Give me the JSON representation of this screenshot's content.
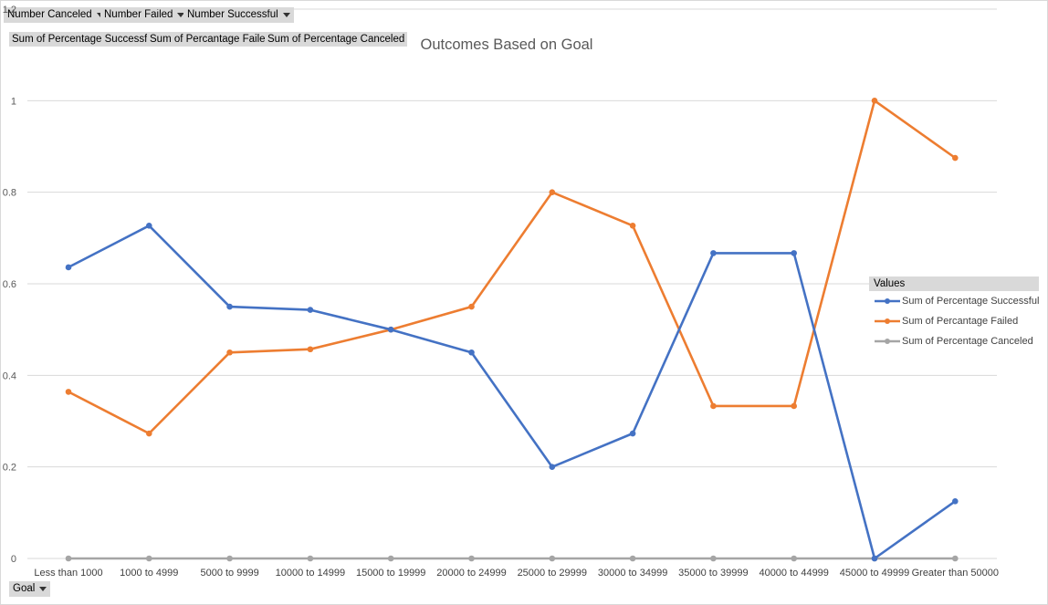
{
  "filters": [
    {
      "label": "Number Canceled"
    },
    {
      "label": "Number Failed"
    },
    {
      "label": "Number Successful"
    }
  ],
  "value_fields": [
    "Sum of Percentage Successful",
    "Sum of Percantage Failed",
    "Sum of Percentage Canceled"
  ],
  "axis_field": {
    "label": "Goal"
  },
  "legend": {
    "title": "Values"
  },
  "colors": {
    "successful": "#4472c4",
    "failed": "#ed7d31",
    "canceled": "#a5a5a5",
    "grid": "#d9d9d9"
  },
  "chart_data": {
    "type": "line",
    "title": "Outcomes Based on Goal",
    "categories": [
      "Less than 1000",
      "1000 to 4999",
      "5000 to 9999",
      "10000 to 14999",
      "15000 to 19999",
      "20000 to 24999",
      "25000 to 29999",
      "30000 to 34999",
      "35000 to 39999",
      "40000 to 44999",
      "45000 to 49999",
      "Greater than 50000"
    ],
    "ylim": [
      0,
      1.2
    ],
    "yticks": [
      0,
      0.2,
      0.4,
      0.6,
      0.8,
      1,
      1.2
    ],
    "ytick_labels": [
      "0",
      "0.2",
      "0.4",
      "0.6",
      "0.8",
      "1",
      "1.2"
    ],
    "grid": true,
    "legend_position": "right",
    "series": [
      {
        "name": "Sum of Percentage Successful",
        "color": "#4472c4",
        "values": [
          0.636,
          0.727,
          0.55,
          0.543,
          0.5,
          0.45,
          0.2,
          0.273,
          0.667,
          0.667,
          0,
          0.125
        ]
      },
      {
        "name": "Sum of Percantage Failed",
        "color": "#ed7d31",
        "values": [
          0.364,
          0.273,
          0.45,
          0.457,
          0.5,
          0.55,
          0.8,
          0.727,
          0.333,
          0.333,
          1,
          0.875
        ]
      },
      {
        "name": "Sum of Percentage Canceled",
        "color": "#a5a5a5",
        "values": [
          0,
          0,
          0,
          0,
          0,
          0,
          0,
          0,
          0,
          0,
          0,
          0
        ]
      }
    ]
  }
}
